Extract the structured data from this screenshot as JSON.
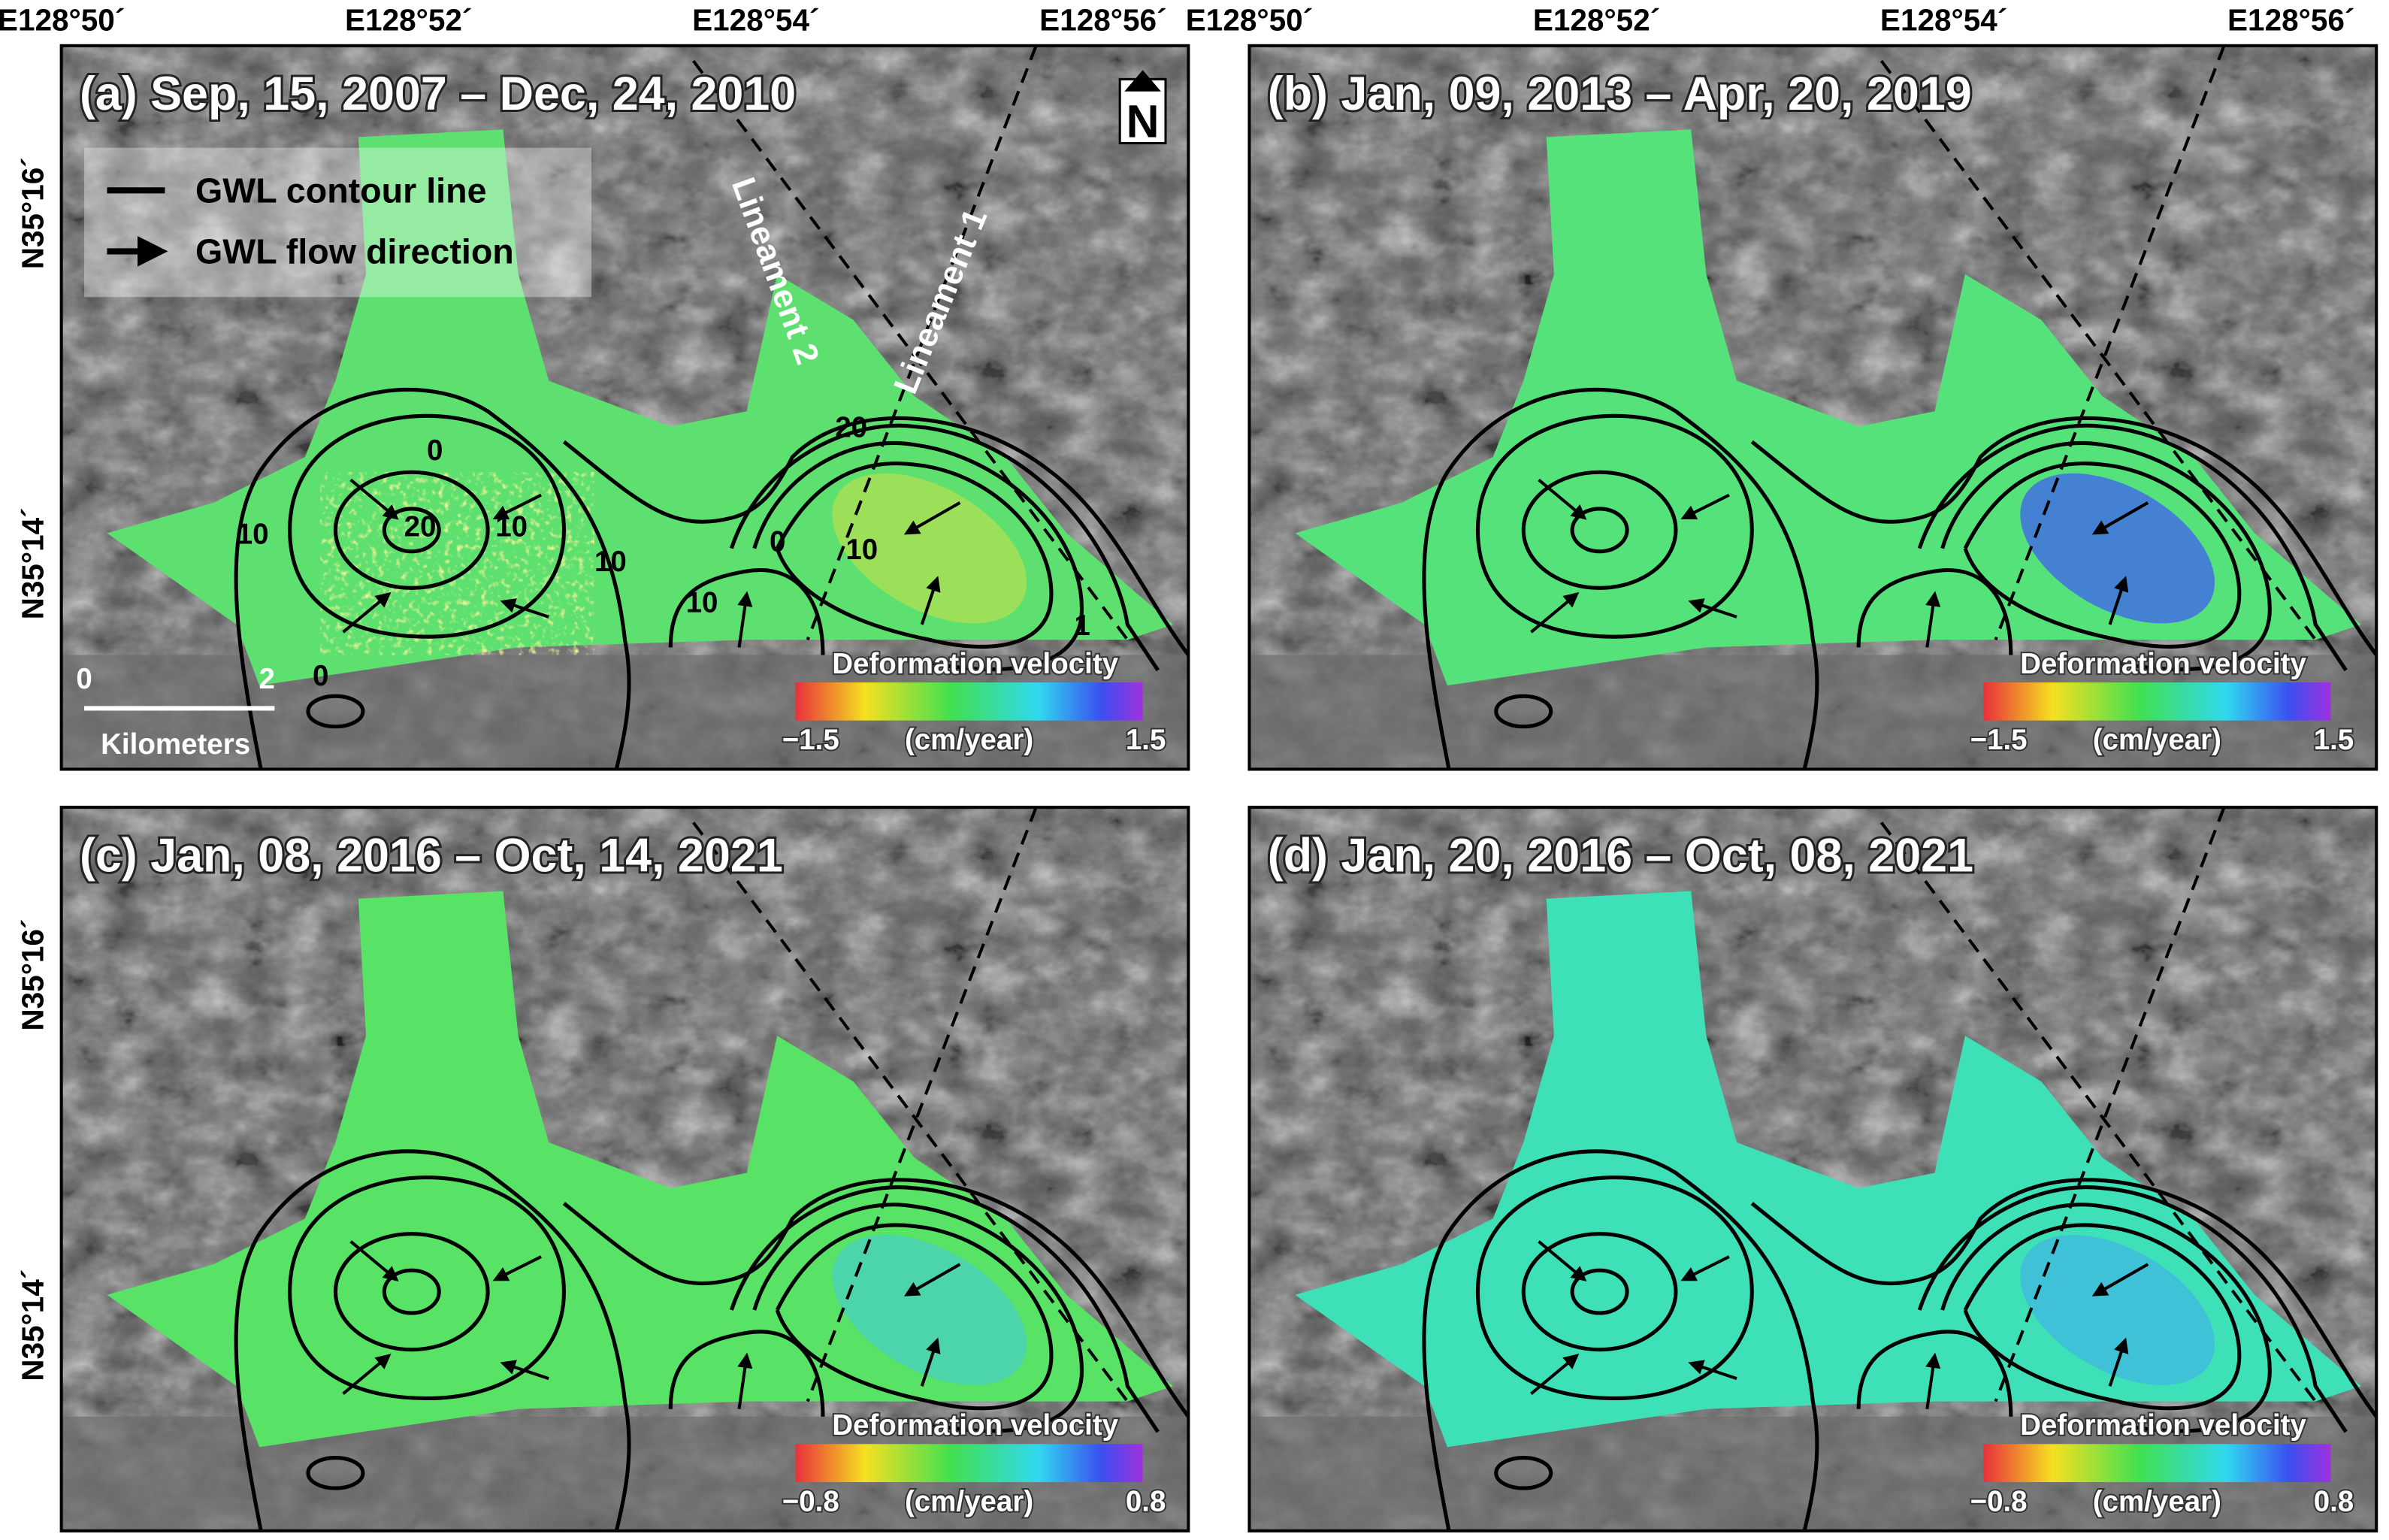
{
  "panels": [
    {
      "title": "(a) Sep, 15, 2007 – Dec, 24, 2010",
      "lon_labels": [
        "E128°50´",
        "E128°52´",
        "E128°54´",
        "E128°56´"
      ],
      "lat_labels": [
        "N35°16´",
        "N35°14´"
      ],
      "colorbar": {
        "title": "Deformation velocity",
        "min": "−1.5",
        "unit": "(cm/year)",
        "max": "1.5"
      },
      "legend": [
        "GWL contour line",
        "GWL flow direction"
      ],
      "lineaments": [
        "Lineament 2",
        "Lineament 1"
      ],
      "contour_labels": [
        "0",
        "20",
        "10",
        "10",
        "10",
        "20",
        "0",
        "10",
        "10",
        "0",
        "1"
      ],
      "scale_bar": {
        "start": "0",
        "end": "2",
        "unit": "Kilometers"
      },
      "north": "N"
    },
    {
      "title": "(b) Jan, 09, 2013 – Apr, 20, 2019",
      "lon_labels": [
        "E128°50´",
        "E128°52´",
        "E128°54´",
        "E128°56´"
      ],
      "colorbar": {
        "title": "Deformation velocity",
        "min": "−1.5",
        "unit": "(cm/year)",
        "max": "1.5"
      }
    },
    {
      "title": "(c) Jan, 08, 2016 – Oct, 14, 2021",
      "lat_labels": [
        "N35°16´",
        "N35°14´"
      ],
      "colorbar": {
        "title": "Deformation velocity",
        "min": "−0.8",
        "unit": "(cm/year)",
        "max": "0.8"
      }
    },
    {
      "title": "(d) Jan, 20, 2016 – Oct, 08, 2021",
      "colorbar": {
        "title": "Deformation velocity",
        "min": "−0.8",
        "unit": "(cm/year)",
        "max": "0.8"
      }
    }
  ]
}
